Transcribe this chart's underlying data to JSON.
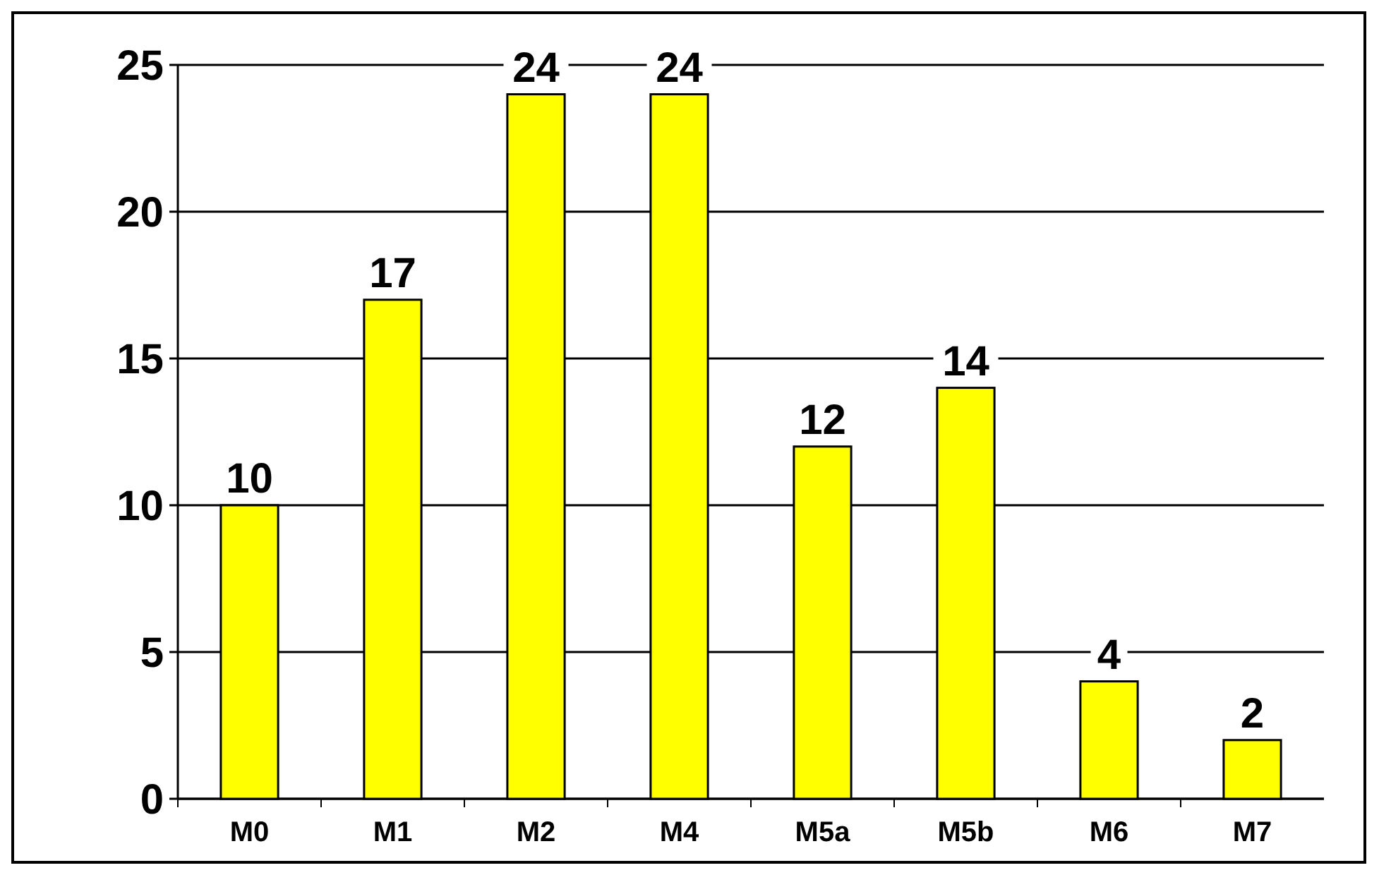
{
  "chart_data": {
    "type": "bar",
    "categories": [
      "M0",
      "M1",
      "M2",
      "M4",
      "M5a",
      "M5b",
      "M6",
      "M7"
    ],
    "values": [
      10,
      17,
      24,
      24,
      12,
      14,
      4,
      2
    ],
    "color": "#ffff00",
    "ylim": [
      0,
      25
    ],
    "yticks": [
      0,
      5,
      10,
      15,
      20,
      25
    ],
    "grid": "y",
    "data_labels": true
  }
}
